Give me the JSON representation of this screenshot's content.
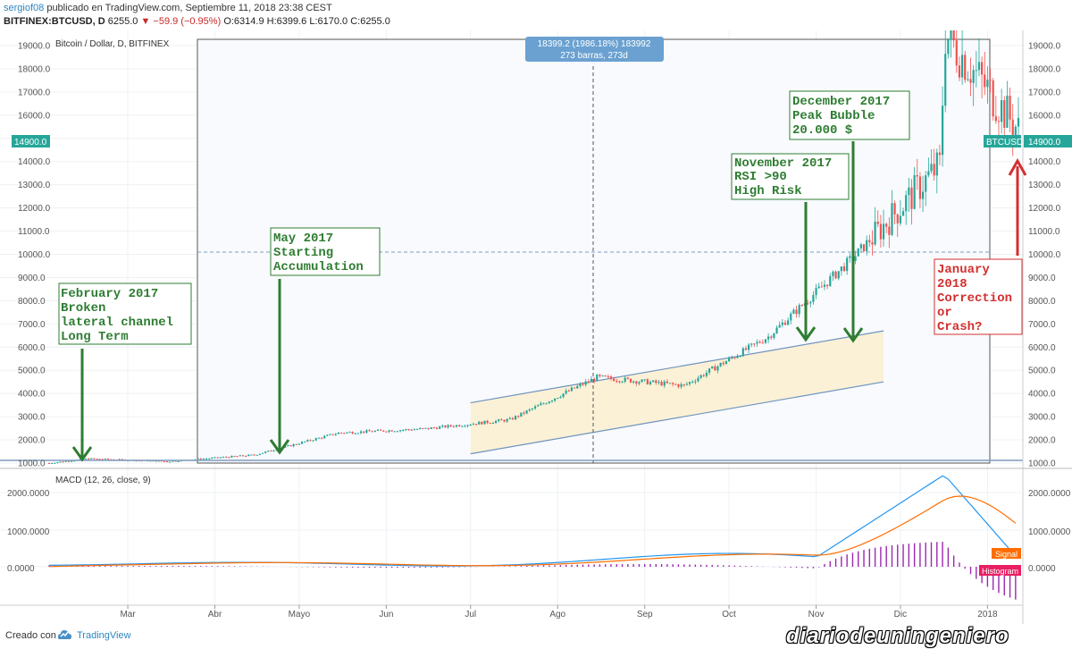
{
  "header": {
    "user": "sergiof08",
    "published": " publicado en TradingView.com, Septiembre 11, 2018 23:38 CEST",
    "symbol": "BITFINEX:BTCUSD, D",
    "last": "6255.0",
    "change_icon": "triangle-down",
    "change": "−59.9 (−0.95%)",
    "ohlc": "O:6314.9 H:6399.6 L:6170.0 C:6255.0"
  },
  "chart_title": "Bitcoin / Dollar, D, BITFINEX",
  "measure": {
    "line1": "18399.2 (1986.18%) 183992",
    "line2": "273 barras, 273d"
  },
  "price_labels": {
    "left": "14900.0",
    "right": "14900.0",
    "ticker": "BTCUSD"
  },
  "annotations": {
    "feb": [
      "February 2017",
      "Broken",
      "lateral channel",
      "Long Term"
    ],
    "may": [
      "May 2017",
      "Starting",
      "Accumulation"
    ],
    "nov": [
      "November 2017",
      "RSI >90",
      "High Risk"
    ],
    "dec": [
      "December 2017",
      "Peak Bubble",
      "20.000 $"
    ],
    "jan": [
      "January",
      "2018",
      "Correction",
      "or",
      "Crash?"
    ]
  },
  "macd": {
    "title": "MACD (12, 26, close, 9)",
    "y_ticks": [
      "2000.0000",
      "1000.0000",
      "0.0000"
    ],
    "signal_label": "Signal",
    "histogram_label": "Histogram"
  },
  "footer": {
    "created": "Creado con",
    "brand": "TradingView",
    "brand_icon": "tradingview-cloud-icon",
    "watermark": "diariodeuningeniero"
  },
  "colors": {
    "up": "#26a69a",
    "down": "#ef5350",
    "annotation": "#2e7d32",
    "crash": "#d32f2f",
    "macd": "#2196f3",
    "signal": "#ff6d00",
    "histogram": "#9c27b0"
  },
  "chart_data": {
    "type": "candlestick",
    "x_ticks": [
      "Mar",
      "Abr",
      "Mayo",
      "Jun",
      "Jul",
      "Ago",
      "Sep",
      "Oct",
      "Nov",
      "Dic",
      "2018"
    ],
    "y_ticks": [
      1000,
      2000,
      3000,
      4000,
      5000,
      6000,
      7000,
      8000,
      9000,
      10000,
      11000,
      12000,
      13000,
      14000,
      15000,
      16000,
      17000,
      18000,
      19000
    ],
    "ylim": [
      900,
      19500
    ],
    "series_monthly_close_approx": [
      {
        "x": "2017-02",
        "y": 1190
      },
      {
        "x": "2017-03",
        "y": 1070
      },
      {
        "x": "2017-04",
        "y": 1350
      },
      {
        "x": "2017-05",
        "y": 2300
      },
      {
        "x": "2017-06",
        "y": 2480
      },
      {
        "x": "2017-07",
        "y": 2870
      },
      {
        "x": "2017-08",
        "y": 4700
      },
      {
        "x": "2017-09",
        "y": 4340
      },
      {
        "x": "2017-10",
        "y": 6450
      },
      {
        "x": "2017-11",
        "y": 9950
      },
      {
        "x": "2017-12",
        "y": 13850
      },
      {
        "x": "2018-01",
        "y": 14900
      }
    ],
    "peak": {
      "x": "2017-12-17",
      "y": 19500
    },
    "channel": {
      "x_start": "2017-07-01",
      "x_end": "2017-11-25",
      "lower_start": 1400,
      "lower_end": 4500,
      "upper_start": 3600,
      "upper_end": 6700
    }
  }
}
